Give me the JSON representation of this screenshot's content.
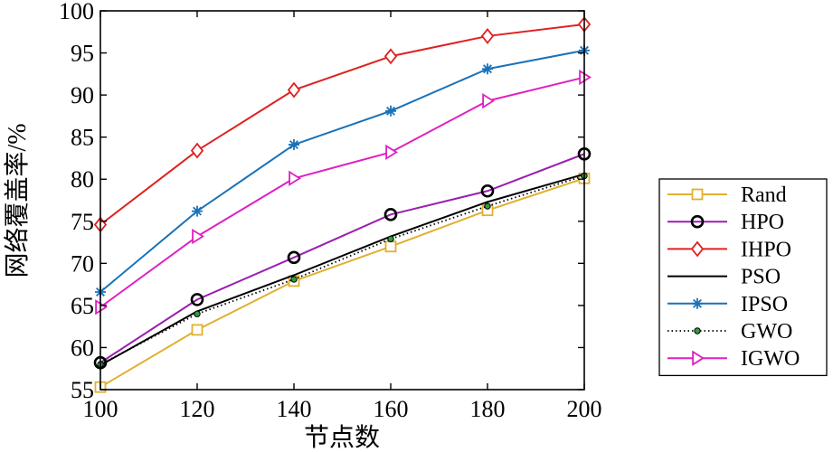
{
  "chart_data": {
    "type": "line",
    "title": "",
    "xlabel": "节点数",
    "ylabel": "网络覆盖率/%",
    "xlim": [
      100,
      200
    ],
    "ylim": [
      55,
      100
    ],
    "x": [
      100,
      120,
      140,
      160,
      180,
      200
    ],
    "xticks": [
      "100",
      "120",
      "140",
      "160",
      "180",
      "200"
    ],
    "yticks": [
      "55",
      "60",
      "65",
      "70",
      "75",
      "80",
      "85",
      "90",
      "95",
      "100"
    ],
    "grid": false,
    "legend_position": "right",
    "series": [
      {
        "name": "Rand",
        "values": [
          55.3,
          62.1,
          67.9,
          72.0,
          76.3,
          80.1
        ],
        "color": "#e0b030",
        "marker": "square",
        "line": "solid"
      },
      {
        "name": "HPO",
        "values": [
          58.2,
          65.7,
          70.7,
          75.8,
          78.6,
          83.0
        ],
        "color": "#9a1fb0",
        "marker": "circle",
        "line": "solid"
      },
      {
        "name": "IHPO",
        "values": [
          74.6,
          83.4,
          90.6,
          94.6,
          97.0,
          98.4
        ],
        "color": "#e02020",
        "marker": "diamond",
        "line": "solid"
      },
      {
        "name": "PSO",
        "values": [
          57.9,
          64.3,
          68.6,
          73.2,
          77.3,
          80.6
        ],
        "color": "#000000",
        "marker": "none",
        "line": "solid"
      },
      {
        "name": "IPSO",
        "values": [
          66.6,
          76.2,
          84.1,
          88.1,
          93.1,
          95.3
        ],
        "color": "#1a72b8",
        "marker": "star",
        "line": "solid"
      },
      {
        "name": "GWO",
        "values": [
          58.0,
          64.0,
          68.1,
          72.9,
          76.8,
          80.4
        ],
        "color": "#000000",
        "marker": "dot",
        "line": "dotted"
      },
      {
        "name": "IGWO",
        "values": [
          64.8,
          73.2,
          80.1,
          83.2,
          89.3,
          92.1
        ],
        "color": "#e020c0",
        "marker": "triangle-right",
        "line": "solid"
      }
    ]
  }
}
